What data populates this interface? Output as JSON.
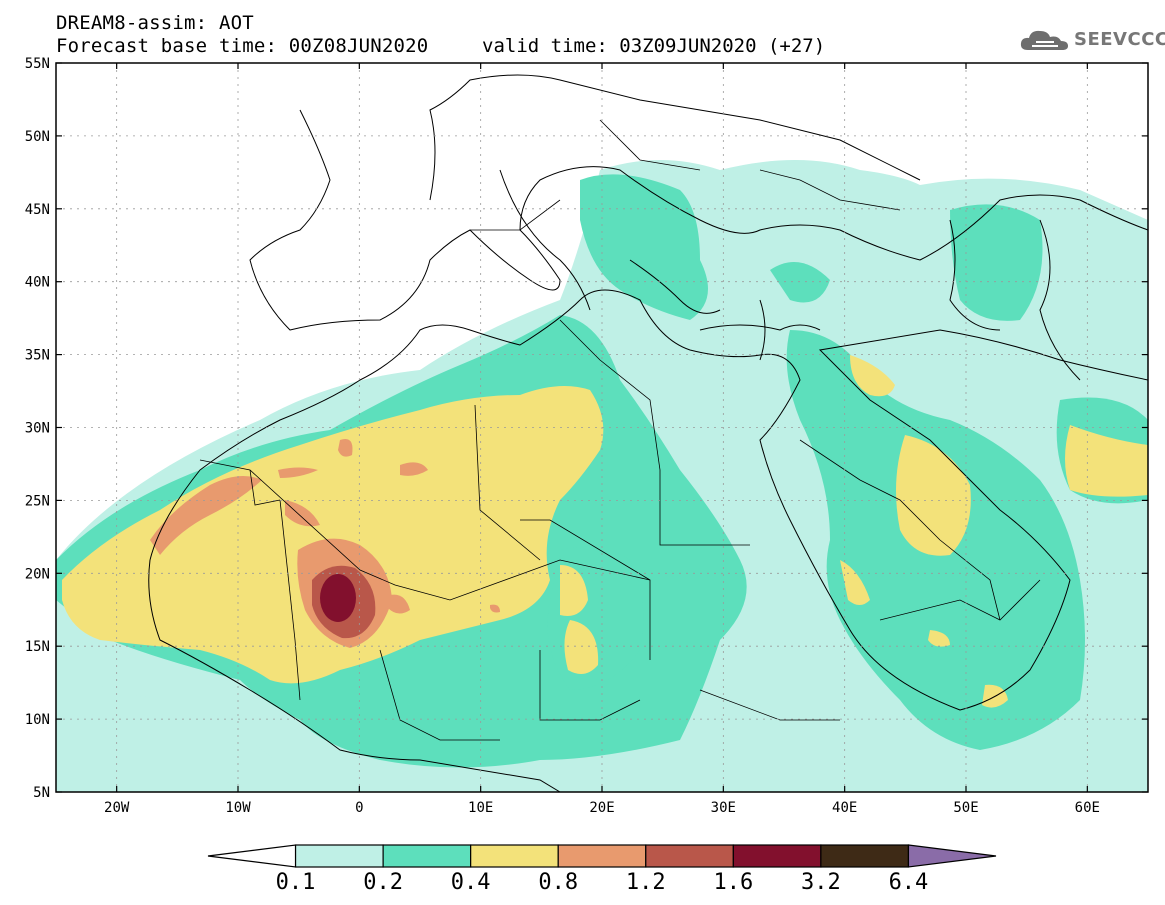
{
  "header": {
    "title_line1": "DREAM8-assim: AOT",
    "title_line2": "Forecast base time: 00Z08JUN2020",
    "valid_time": "valid time: 03Z09JUN2020 (+27)",
    "logo_text": "SEEVCCC",
    "logo_icon": "cloud-icon"
  },
  "map": {
    "lon_range": [
      -25,
      65
    ],
    "lat_range": [
      5,
      55
    ],
    "lat_labels": [
      "55N",
      "50N",
      "45N",
      "40N",
      "35N",
      "30N",
      "25N",
      "20N",
      "15N",
      "10N",
      "5N"
    ],
    "lon_labels": [
      "20W",
      "10W",
      "0",
      "10E",
      "20E",
      "30E",
      "40E",
      "50E",
      "60E"
    ]
  },
  "colorbar": {
    "colors": [
      "#ffffff",
      "#bff0e6",
      "#5ddfbc",
      "#f3e27a",
      "#e89a6e",
      "#b9574a",
      "#82102d",
      "#3e2a16",
      "#8a6ca8"
    ],
    "labels": [
      "0.1",
      "0.2",
      "0.4",
      "0.8",
      "1.2",
      "1.6",
      "3.2",
      "6.4"
    ]
  },
  "levels": {
    "c1": "#bff0e6",
    "c2": "#5ddfbc",
    "c4": "#f3e27a",
    "c8": "#e89a6e",
    "c12": "#b9574a",
    "c16": "#82102d"
  }
}
